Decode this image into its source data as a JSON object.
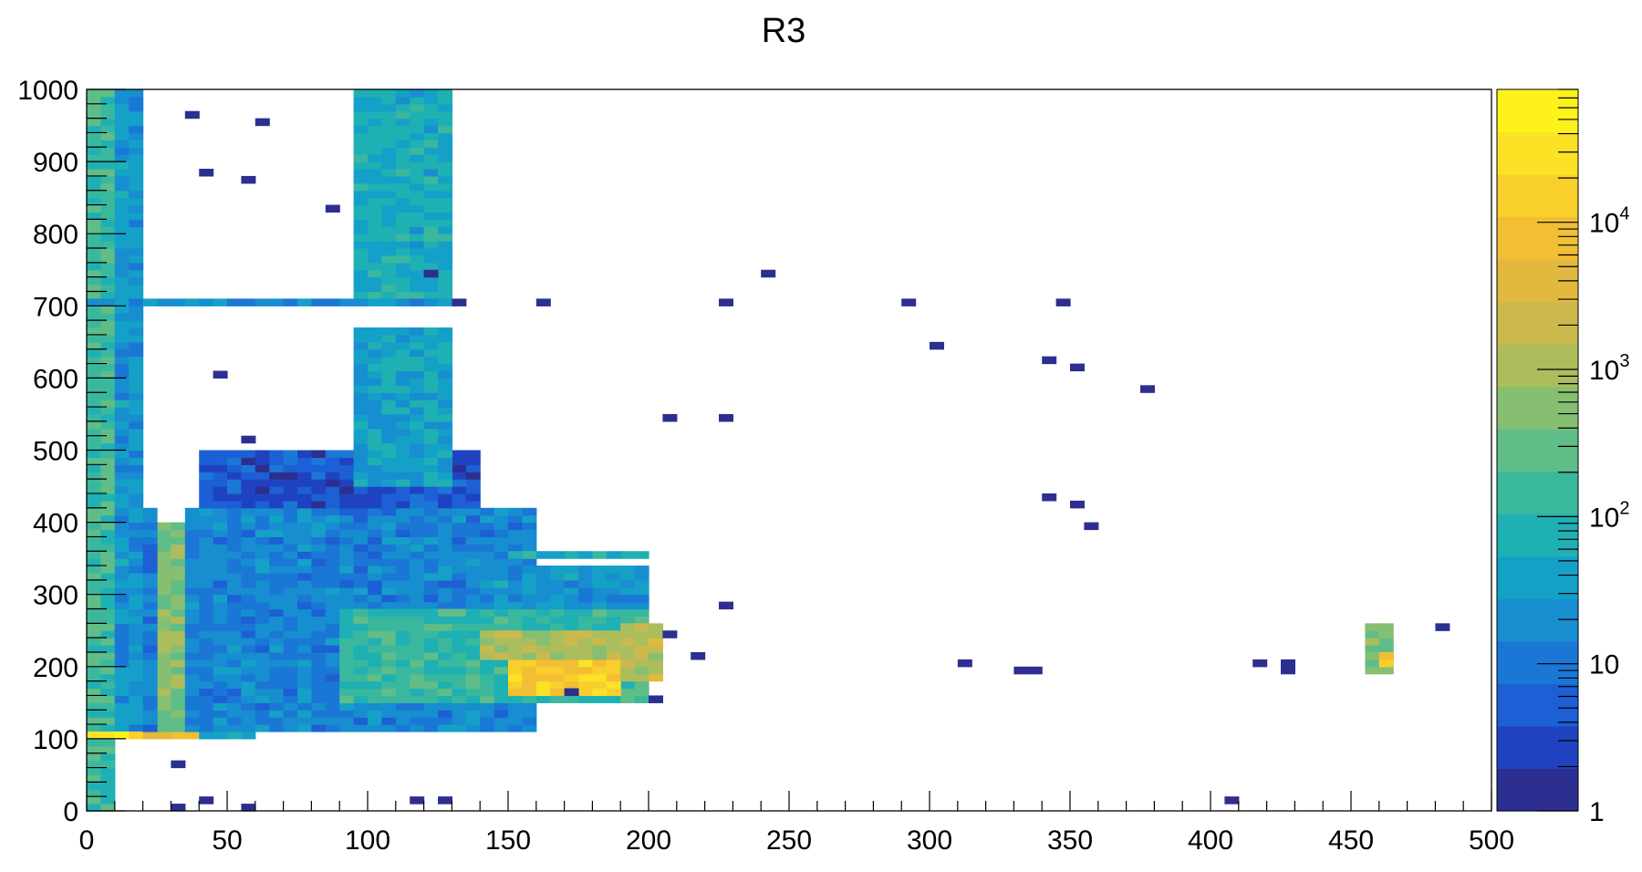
{
  "chart_data": {
    "type": "heatmap",
    "title": "R3",
    "xlabel": "",
    "ylabel": "",
    "xlim": [
      0,
      500
    ],
    "ylim": [
      0,
      1000
    ],
    "x_ticks": [
      "0",
      "50",
      "100",
      "150",
      "200",
      "250",
      "300",
      "350",
      "400",
      "450",
      "500"
    ],
    "y_ticks": [
      "0",
      "100",
      "200",
      "300",
      "400",
      "500",
      "600",
      "700",
      "800",
      "900",
      "1000"
    ],
    "bin_size": [
      5,
      10
    ],
    "color_scale": "log",
    "zlim": [
      1,
      80000
    ],
    "colorbar_labels": [
      {
        "value": 1,
        "text": "1"
      },
      {
        "value": 10,
        "text": "10"
      },
      {
        "value": 100,
        "base": "10",
        "exp": "2"
      },
      {
        "value": 1000,
        "base": "10",
        "exp": "3"
      },
      {
        "value": 10000,
        "base": "10",
        "exp": "4"
      }
    ],
    "palette": [
      "#2c2f8f",
      "#1f43c0",
      "#1d5fd4",
      "#1b77d6",
      "#178ecf",
      "#15a0c8",
      "#1fb0b4",
      "#3ab89e",
      "#60bd88",
      "#87bf72",
      "#abbd5c",
      "#cbb94d",
      "#e2b93e",
      "#f2be33",
      "#f9cf2c",
      "#fbe225",
      "#fdf31b"
    ],
    "regions": [
      {
        "x": [
          0,
          10
        ],
        "y": [
          0,
          1000
        ],
        "w": 150
      },
      {
        "x": [
          10,
          20
        ],
        "y": [
          100,
          1000
        ],
        "w": 25
      },
      {
        "x": [
          0,
          20
        ],
        "y": [
          100,
          110
        ],
        "w": 20000
      },
      {
        "x": [
          20,
          40
        ],
        "y": [
          100,
          110
        ],
        "w": 9000
      },
      {
        "x": [
          40,
          60
        ],
        "y": [
          100,
          110
        ],
        "w": 70
      },
      {
        "x": [
          25,
          35
        ],
        "y": [
          110,
          400
        ],
        "w": 500
      },
      {
        "x": [
          20,
          25
        ],
        "y": [
          110,
          420
        ],
        "w": 10
      },
      {
        "x": [
          35,
          160
        ],
        "y": [
          110,
          420
        ],
        "w": 15
      },
      {
        "x": [
          40,
          140
        ],
        "y": [
          420,
          500
        ],
        "w": 4
      },
      {
        "x": [
          95,
          130
        ],
        "y": [
          450,
          670
        ],
        "w": 40
      },
      {
        "x": [
          95,
          130
        ],
        "y": [
          710,
          1000
        ],
        "w": 55
      },
      {
        "x": [
          0,
          130
        ],
        "y": [
          700,
          710
        ],
        "w": 20
      },
      {
        "x": [
          90,
          200
        ],
        "y": [
          150,
          280
        ],
        "w": 120
      },
      {
        "x": [
          150,
          190
        ],
        "y": [
          160,
          210
        ],
        "w": 12000
      },
      {
        "x": [
          190,
          205
        ],
        "y": [
          180,
          260
        ],
        "w": 1500
      },
      {
        "x": [
          140,
          190
        ],
        "y": [
          210,
          250
        ],
        "w": 1200
      },
      {
        "x": [
          140,
          200
        ],
        "y": [
          280,
          340
        ],
        "w": 25
      },
      {
        "x": [
          150,
          200
        ],
        "y": [
          350,
          360
        ],
        "w": 80
      },
      {
        "x": [
          455,
          465
        ],
        "y": [
          190,
          260
        ],
        "w": 400
      },
      {
        "x": [
          460,
          465
        ],
        "y": [
          200,
          220
        ],
        "w": 15000
      }
    ],
    "isolated_bins": [
      [
        35,
        965
      ],
      [
        60,
        955
      ],
      [
        42,
        885
      ],
      [
        85,
        835
      ],
      [
        55,
        875
      ],
      [
        120,
        745
      ],
      [
        240,
        745
      ],
      [
        130,
        705
      ],
      [
        160,
        705
      ],
      [
        228,
        705
      ],
      [
        290,
        705
      ],
      [
        348,
        705
      ],
      [
        302,
        645
      ],
      [
        341,
        625
      ],
      [
        352,
        615
      ],
      [
        377,
        585
      ],
      [
        45,
        605
      ],
      [
        205,
        545
      ],
      [
        228,
        545
      ],
      [
        58,
        515
      ],
      [
        342,
        435
      ],
      [
        353,
        425
      ],
      [
        358,
        395
      ],
      [
        312,
        205
      ],
      [
        333,
        195
      ],
      [
        337,
        195
      ],
      [
        418,
        205
      ],
      [
        428,
        205
      ],
      [
        428,
        195
      ],
      [
        216,
        215
      ],
      [
        226,
        285
      ],
      [
        480,
        255
      ],
      [
        407,
        15
      ],
      [
        58,
        5
      ],
      [
        32,
        5
      ],
      [
        30,
        65
      ],
      [
        115,
        15
      ],
      [
        125,
        15
      ],
      [
        40,
        15
      ],
      [
        207,
        245
      ],
      [
        173,
        165
      ],
      [
        200,
        155
      ]
    ]
  }
}
